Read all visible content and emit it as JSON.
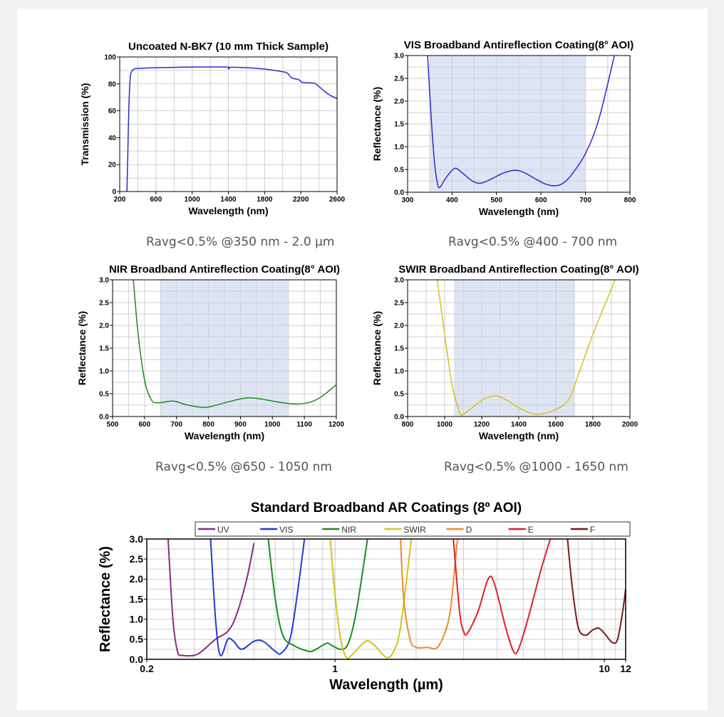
{
  "captions": [
    "Ravg<0.5% @350 nm - 2.0 µm",
    "Ravg<0.5% @400 - 700 nm",
    "Ravg<0.5% @650 - 1050 nm",
    "Ravg<0.5% @1000 - 1650 nm"
  ],
  "chart_data": [
    {
      "type": "line",
      "title": "Uncoated N-BK7 (10 mm Thick Sample)",
      "xlabel": "Wavelength (nm)",
      "ylabel": "Transmission (%)",
      "xlim": [
        200,
        2600
      ],
      "ylim": [
        0,
        100
      ],
      "xticks": [
        200,
        600,
        1000,
        1400,
        1800,
        2200,
        2600
      ],
      "yticks": [
        0,
        20,
        40,
        60,
        80,
        100
      ],
      "xgrid": 200,
      "ygrid": 10,
      "grid": true,
      "series": [
        {
          "name": "N-BK7",
          "color": "#2a2ad0",
          "points": [
            [
              280,
              0
            ],
            [
              290,
              30
            ],
            [
              300,
              60
            ],
            [
              315,
              84
            ],
            [
              335,
              89.5
            ],
            [
              360,
              91
            ],
            [
              400,
              91.5
            ],
            [
              600,
              92
            ],
            [
              1000,
              92.5
            ],
            [
              1380,
              92.5
            ],
            [
              1400,
              91
            ],
            [
              1420,
              92.3
            ],
            [
              1600,
              92
            ],
            [
              1800,
              91
            ],
            [
              2000,
              89
            ],
            [
              2050,
              88
            ],
            [
              2100,
              84.5
            ],
            [
              2180,
              83
            ],
            [
              2220,
              81
            ],
            [
              2350,
              80.5
            ],
            [
              2400,
              78
            ],
            [
              2500,
              72.5
            ],
            [
              2600,
              69
            ]
          ]
        }
      ]
    },
    {
      "type": "line",
      "title": "VIS Broadband Antireflection Coating(8° AOI)",
      "xlabel": "Wavelength (nm)",
      "ylabel": "Reflectance (%)",
      "xlim": [
        300,
        800
      ],
      "ylim": [
        0,
        3
      ],
      "xticks": [
        300,
        400,
        500,
        600,
        700,
        800
      ],
      "yticks": [
        0,
        0.5,
        1.0,
        1.5,
        2.0,
        2.5,
        3.0
      ],
      "xgrid": 50,
      "ygrid": 0.25,
      "grid": true,
      "band": [
        350,
        700
      ],
      "series": [
        {
          "name": "VIS",
          "color": "#2a2ad0",
          "points": [
            [
              345,
              3.0
            ],
            [
              352,
              1.8
            ],
            [
              360,
              0.7
            ],
            [
              366,
              0.25
            ],
            [
              372,
              0.1
            ],
            [
              385,
              0.3
            ],
            [
              405,
              0.52
            ],
            [
              420,
              0.45
            ],
            [
              445,
              0.25
            ],
            [
              465,
              0.2
            ],
            [
              490,
              0.3
            ],
            [
              515,
              0.42
            ],
            [
              540,
              0.48
            ],
            [
              560,
              0.44
            ],
            [
              590,
              0.28
            ],
            [
              610,
              0.18
            ],
            [
              630,
              0.14
            ],
            [
              650,
              0.2
            ],
            [
              670,
              0.4
            ],
            [
              700,
              0.85
            ],
            [
              730,
              1.6
            ],
            [
              765,
              3.0
            ]
          ]
        }
      ]
    },
    {
      "type": "line",
      "title": "NIR Broadband Antireflection Coating(8° AOI)",
      "xlabel": "Wavelength (nm)",
      "ylabel": "Reflectance (%)",
      "xlim": [
        500,
        1200
      ],
      "ylim": [
        0,
        3
      ],
      "xticks": [
        500,
        600,
        700,
        800,
        900,
        1000,
        1100,
        1200
      ],
      "yticks": [
        0,
        0.5,
        1.0,
        1.5,
        2.0,
        2.5,
        3.0
      ],
      "xgrid": 50,
      "ygrid": 0.25,
      "grid": true,
      "band": [
        650,
        1050
      ],
      "series": [
        {
          "name": "NIR",
          "color": "#1f8a1f",
          "points": [
            [
              565,
              3.0
            ],
            [
              580,
              1.8
            ],
            [
              600,
              0.8
            ],
            [
              620,
              0.38
            ],
            [
              640,
              0.3
            ],
            [
              690,
              0.34
            ],
            [
              730,
              0.26
            ],
            [
              790,
              0.2
            ],
            [
              850,
              0.3
            ],
            [
              910,
              0.4
            ],
            [
              950,
              0.4
            ],
            [
              1000,
              0.34
            ],
            [
              1060,
              0.28
            ],
            [
              1110,
              0.3
            ],
            [
              1150,
              0.42
            ],
            [
              1200,
              0.7
            ]
          ]
        }
      ]
    },
    {
      "type": "line",
      "title": "SWIR Broadband Antireflection Coating(8° AOI)",
      "xlabel": "Wavelength (nm)",
      "ylabel": "Reflectance (%)",
      "xlim": [
        800,
        2000
      ],
      "ylim": [
        0,
        3
      ],
      "xticks": [
        800,
        1000,
        1200,
        1400,
        1600,
        1800,
        2000
      ],
      "yticks": [
        0,
        0.5,
        1.0,
        1.5,
        2.0,
        2.5,
        3.0
      ],
      "xgrid": 100,
      "ygrid": 0.25,
      "grid": true,
      "band": [
        1050,
        1700
      ],
      "series": [
        {
          "name": "SWIR",
          "color": "#d4c31a",
          "points": [
            [
              960,
              3.0
            ],
            [
              1000,
              1.8
            ],
            [
              1040,
              0.7
            ],
            [
              1080,
              0.1
            ],
            [
              1100,
              0.05
            ],
            [
              1150,
              0.2
            ],
            [
              1220,
              0.4
            ],
            [
              1280,
              0.45
            ],
            [
              1340,
              0.35
            ],
            [
              1420,
              0.15
            ],
            [
              1500,
              0.05
            ],
            [
              1580,
              0.12
            ],
            [
              1640,
              0.25
            ],
            [
              1680,
              0.45
            ],
            [
              1720,
              0.9
            ],
            [
              1800,
              1.8
            ],
            [
              1920,
              3.0
            ]
          ]
        }
      ]
    },
    {
      "type": "line",
      "title": "Standard Broadband AR Coatings (8º AOI)",
      "xlabel": "Wavelength (µm)",
      "ylabel": "Reflectance (%)",
      "xscale": "log",
      "xlim": [
        0.2,
        12
      ],
      "ylim": [
        0,
        3
      ],
      "xticks": [
        0.2,
        1,
        10,
        12
      ],
      "yticks": [
        0.0,
        0.5,
        1.0,
        1.5,
        2.0,
        2.5,
        3.0
      ],
      "ygrid": 0.25,
      "grid": true,
      "legend": "top",
      "series": [
        {
          "name": "UV",
          "color": "#8b2a8b",
          "points": [
            [
              0.24,
              3
            ],
            [
              0.25,
              1
            ],
            [
              0.26,
              0.2
            ],
            [
              0.27,
              0.1
            ],
            [
              0.3,
              0.1
            ],
            [
              0.32,
              0.2
            ],
            [
              0.36,
              0.5
            ],
            [
              0.4,
              0.7
            ],
            [
              0.43,
              1.1
            ],
            [
              0.47,
              2.0
            ],
            [
              0.5,
              2.9
            ]
          ]
        },
        {
          "name": "VIS",
          "color": "#1f3bd6",
          "points": [
            [
              0.345,
              3
            ],
            [
              0.36,
              1
            ],
            [
              0.375,
              0.1
            ],
            [
              0.4,
              0.5
            ],
            [
              0.42,
              0.45
            ],
            [
              0.45,
              0.25
            ],
            [
              0.5,
              0.45
            ],
            [
              0.54,
              0.45
            ],
            [
              0.6,
              0.2
            ],
            [
              0.63,
              0.15
            ],
            [
              0.68,
              0.5
            ],
            [
              0.72,
              1.5
            ],
            [
              0.77,
              3
            ]
          ]
        },
        {
          "name": "NIR",
          "color": "#1f8a1f",
          "points": [
            [
              0.565,
              3
            ],
            [
              0.6,
              1.5
            ],
            [
              0.64,
              0.6
            ],
            [
              0.7,
              0.35
            ],
            [
              0.8,
              0.2
            ],
            [
              0.85,
              0.25
            ],
            [
              0.93,
              0.4
            ],
            [
              0.97,
              0.35
            ],
            [
              1.05,
              0.25
            ],
            [
              1.12,
              0.4
            ],
            [
              1.2,
              1.2
            ],
            [
              1.32,
              3
            ]
          ]
        },
        {
          "name": "SWIR",
          "color": "#d4c31a",
          "points": [
            [
              0.96,
              3
            ],
            [
              1.0,
              1.6
            ],
            [
              1.05,
              0.5
            ],
            [
              1.1,
              0.05
            ],
            [
              1.15,
              0.1
            ],
            [
              1.3,
              0.45
            ],
            [
              1.4,
              0.35
            ],
            [
              1.55,
              0.05
            ],
            [
              1.65,
              0.2
            ],
            [
              1.75,
              0.8
            ],
            [
              1.92,
              3
            ]
          ]
        },
        {
          "name": "D",
          "color": "#f08a2a",
          "points": [
            [
              1.75,
              3
            ],
            [
              1.8,
              1.5
            ],
            [
              1.9,
              0.5
            ],
            [
              2.0,
              0.3
            ],
            [
              2.2,
              0.3
            ],
            [
              2.4,
              0.3
            ],
            [
              2.6,
              0.8
            ],
            [
              2.7,
              1.4
            ],
            [
              2.8,
              2.5
            ],
            [
              2.85,
              3
            ]
          ]
        },
        {
          "name": "E",
          "color": "#e0202a",
          "points": [
            [
              2.75,
              3
            ],
            [
              2.9,
              1.2
            ],
            [
              3.0,
              0.7
            ],
            [
              3.1,
              0.65
            ],
            [
              3.4,
              1.2
            ],
            [
              3.7,
              2.0
            ],
            [
              3.9,
              1.9
            ],
            [
              4.3,
              0.8
            ],
            [
              4.6,
              0.2
            ],
            [
              4.8,
              0.25
            ],
            [
              5.2,
              1.0
            ],
            [
              5.8,
              2.2
            ],
            [
              6.3,
              3
            ]
          ]
        },
        {
          "name": "F",
          "color": "#7a1a1a",
          "points": [
            [
              7.3,
              3
            ],
            [
              7.6,
              1.8
            ],
            [
              8.0,
              0.8
            ],
            [
              8.5,
              0.6
            ],
            [
              9.0,
              0.72
            ],
            [
              9.5,
              0.78
            ],
            [
              10.0,
              0.65
            ],
            [
              10.7,
              0.42
            ],
            [
              11.2,
              0.5
            ],
            [
              11.7,
              1.2
            ],
            [
              12,
              1.75
            ]
          ]
        }
      ]
    }
  ]
}
